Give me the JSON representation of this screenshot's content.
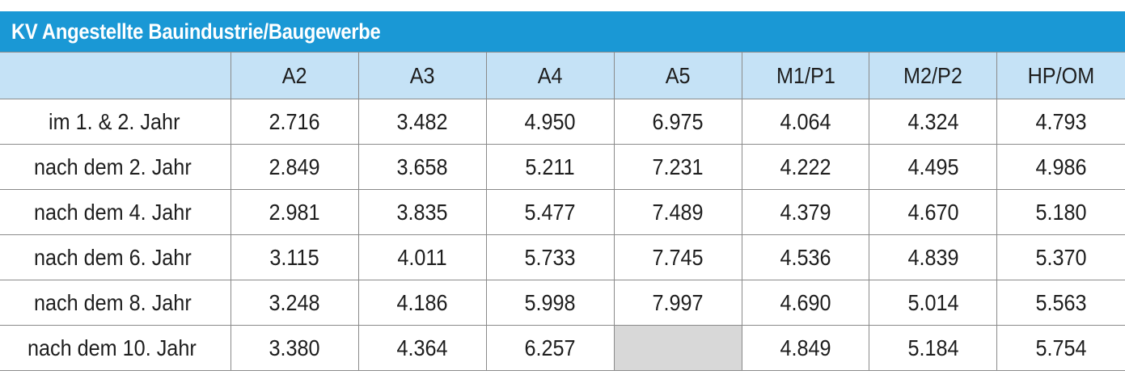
{
  "title": "KV Angestellte Bauindustrie/Baugewerbe",
  "columns": [
    "",
    "A2",
    "A3",
    "A4",
    "A5",
    "M1/P1",
    "M2/P2",
    "HP/OM"
  ],
  "rows": [
    {
      "label": "im 1. & 2. Jahr",
      "values": [
        "2.716",
        "3.482",
        "4.950",
        "6.975",
        "4.064",
        "4.324",
        "4.793"
      ]
    },
    {
      "label": "nach dem 2. Jahr",
      "values": [
        "2.849",
        "3.658",
        "5.211",
        "7.231",
        "4.222",
        "4.495",
        "4.986"
      ]
    },
    {
      "label": "nach dem 4. Jahr",
      "values": [
        "2.981",
        "3.835",
        "5.477",
        "7.489",
        "4.379",
        "4.670",
        "5.180"
      ]
    },
    {
      "label": "nach dem 6. Jahr",
      "values": [
        "3.115",
        "4.011",
        "5.733",
        "7.745",
        "4.536",
        "4.839",
        "5.370"
      ]
    },
    {
      "label": "nach dem 8. Jahr",
      "values": [
        "3.248",
        "4.186",
        "5.998",
        "7.997",
        "4.690",
        "5.014",
        "5.563"
      ]
    },
    {
      "label": "nach dem 10. Jahr",
      "values": [
        "3.380",
        "4.364",
        "6.257",
        "",
        "4.849",
        "5.184",
        "5.754"
      ]
    }
  ],
  "colors": {
    "title_bar": "#1a98d5",
    "header_row": "#c5e2f6",
    "empty_cell": "#d8d8d8"
  }
}
